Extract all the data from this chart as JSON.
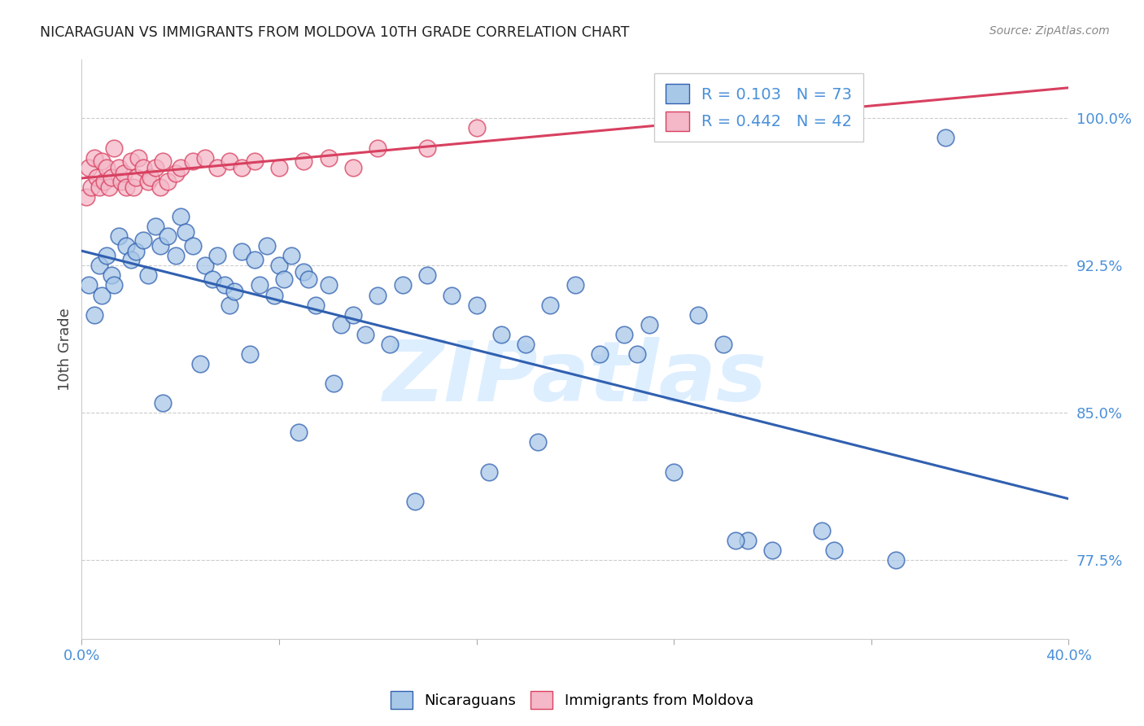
{
  "title": "NICARAGUAN VS IMMIGRANTS FROM MOLDOVA 10TH GRADE CORRELATION CHART",
  "source": "Source: ZipAtlas.com",
  "ylabel": "10th Grade",
  "yticks": [
    77.5,
    85.0,
    92.5,
    100.0
  ],
  "ytick_labels": [
    "77.5%",
    "85.0%",
    "92.5%",
    "100.0%"
  ],
  "xlim": [
    0.0,
    40.0
  ],
  "ylim": [
    73.5,
    103.0
  ],
  "blue_R": 0.103,
  "blue_N": 73,
  "pink_R": 0.442,
  "pink_N": 42,
  "blue_color": "#a8c8e8",
  "pink_color": "#f4b8c8",
  "blue_line_color": "#3060b0",
  "pink_line_color": "#d84060",
  "title_color": "#222222",
  "axis_label_color": "#4a90d9",
  "watermark": "ZIPatlas",
  "watermark_color": "#ddeeff",
  "blue_points_x": [
    0.3,
    0.5,
    0.7,
    0.8,
    1.0,
    1.2,
    1.3,
    1.5,
    1.8,
    2.0,
    2.2,
    2.5,
    2.7,
    3.0,
    3.2,
    3.5,
    3.8,
    4.0,
    4.2,
    4.5,
    5.0,
    5.3,
    5.5,
    5.8,
    6.0,
    6.2,
    6.5,
    7.0,
    7.2,
    7.5,
    7.8,
    8.0,
    8.2,
    8.5,
    9.0,
    9.2,
    9.5,
    10.0,
    10.5,
    11.0,
    11.5,
    12.0,
    12.5,
    13.0,
    14.0,
    15.0,
    16.0,
    17.0,
    18.0,
    19.0,
    20.0,
    21.0,
    22.0,
    23.0,
    24.0,
    25.0,
    26.0,
    27.0,
    28.0,
    30.0,
    35.0,
    3.3,
    4.8,
    6.8,
    8.8,
    10.2,
    13.5,
    16.5,
    18.5,
    22.5,
    26.5,
    30.5,
    33.0
  ],
  "blue_points_y": [
    91.5,
    90.0,
    92.5,
    91.0,
    93.0,
    92.0,
    91.5,
    94.0,
    93.5,
    92.8,
    93.2,
    93.8,
    92.0,
    94.5,
    93.5,
    94.0,
    93.0,
    95.0,
    94.2,
    93.5,
    92.5,
    91.8,
    93.0,
    91.5,
    90.5,
    91.2,
    93.2,
    92.8,
    91.5,
    93.5,
    91.0,
    92.5,
    91.8,
    93.0,
    92.2,
    91.8,
    90.5,
    91.5,
    89.5,
    90.0,
    89.0,
    91.0,
    88.5,
    91.5,
    92.0,
    91.0,
    90.5,
    89.0,
    88.5,
    90.5,
    91.5,
    88.0,
    89.0,
    89.5,
    82.0,
    90.0,
    88.5,
    78.5,
    78.0,
    79.0,
    99.0,
    85.5,
    87.5,
    88.0,
    84.0,
    86.5,
    80.5,
    82.0,
    83.5,
    88.0,
    78.5,
    78.0,
    77.5
  ],
  "pink_points_x": [
    0.2,
    0.3,
    0.4,
    0.5,
    0.6,
    0.7,
    0.8,
    0.9,
    1.0,
    1.1,
    1.2,
    1.3,
    1.5,
    1.6,
    1.7,
    1.8,
    2.0,
    2.1,
    2.2,
    2.3,
    2.5,
    2.7,
    2.8,
    3.0,
    3.2,
    3.3,
    3.5,
    3.8,
    4.0,
    4.5,
    5.0,
    5.5,
    6.0,
    6.5,
    7.0,
    8.0,
    9.0,
    10.0,
    11.0,
    12.0,
    14.0,
    16.0
  ],
  "pink_points_y": [
    96.0,
    97.5,
    96.5,
    98.0,
    97.0,
    96.5,
    97.8,
    96.8,
    97.5,
    96.5,
    97.0,
    98.5,
    97.5,
    96.8,
    97.2,
    96.5,
    97.8,
    96.5,
    97.0,
    98.0,
    97.5,
    96.8,
    97.0,
    97.5,
    96.5,
    97.8,
    96.8,
    97.2,
    97.5,
    97.8,
    98.0,
    97.5,
    97.8,
    97.5,
    97.8,
    97.5,
    97.8,
    98.0,
    97.5,
    98.5,
    98.5,
    99.5
  ]
}
